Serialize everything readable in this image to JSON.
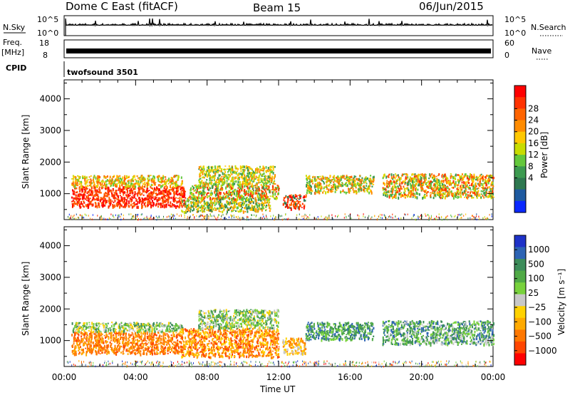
{
  "header": {
    "title": "Dome C East (fitACF)",
    "beam": "Beam 15",
    "date": "06/Jun/2015"
  },
  "top_panels": {
    "nsky_label": "N.Sky",
    "nsky_ticks": [
      "10^5",
      "10^0"
    ],
    "nsearch_label": "N.Search",
    "nsearch_ticks": [
      "10^5",
      "10^0"
    ],
    "freq_label": "Freq.",
    "freq_unit": "[MHz]",
    "freq_ticks": [
      "18",
      "8"
    ],
    "nave_label": "Nave",
    "nave_ticks": [
      "60",
      "0"
    ],
    "cpid_label": "CPID",
    "cpid_value": "twofsound 3501"
  },
  "chart_data": [
    {
      "type": "heatmap",
      "name": "power",
      "ylabel": "Slant Range [km]",
      "yticks": [
        "1000",
        "2000",
        "3000",
        "4000"
      ],
      "ylim": [
        180,
        4600
      ],
      "xlim_hours": [
        0,
        24
      ],
      "xtick_labels": [
        "00:00",
        "04:00",
        "08:00",
        "12:00",
        "16:00",
        "20:00",
        "00:00"
      ],
      "colorbar_label": "Power [dB]",
      "colorbar_ticks": [
        "28",
        "24",
        "20",
        "16",
        "12",
        "8",
        "4"
      ],
      "colorbar_colors": [
        "#ff0000",
        "#ff3200",
        "#ff6400",
        "#ff8c00",
        "#ffc800",
        "#c8dc00",
        "#64c83c",
        "#3c9a50",
        "#2e7850",
        "#1e5aa0",
        "#0a28ff"
      ],
      "scatter_regions": [
        {
          "t0": 0.4,
          "t1": 6.8,
          "r0": 600,
          "r1": 1250,
          "c": [
            0,
            1,
            2
          ]
        },
        {
          "t0": 0.4,
          "t1": 6.6,
          "r0": 1250,
          "r1": 1600,
          "c": [
            2,
            3,
            4,
            5,
            6
          ]
        },
        {
          "t0": 6.5,
          "t1": 11.5,
          "r0": 450,
          "r1": 900,
          "c": [
            3,
            4,
            5,
            6,
            7,
            8
          ]
        },
        {
          "t0": 7.0,
          "t1": 12.0,
          "r0": 850,
          "r1": 1300,
          "c": [
            1,
            2,
            5,
            6,
            7
          ]
        },
        {
          "t0": 7.5,
          "t1": 11.8,
          "r0": 1300,
          "r1": 1900,
          "c": [
            3,
            4,
            5,
            6,
            7
          ]
        },
        {
          "t0": 12.2,
          "t1": 13.5,
          "r0": 550,
          "r1": 1000,
          "c": [
            0,
            1,
            2,
            3,
            8
          ]
        },
        {
          "t0": 13.5,
          "t1": 17.3,
          "r0": 1050,
          "r1": 1600,
          "c": [
            2,
            3,
            4,
            5,
            6,
            7
          ]
        },
        {
          "t0": 17.8,
          "t1": 24.0,
          "r0": 900,
          "r1": 1650,
          "c": [
            1,
            2,
            3,
            4,
            5,
            6,
            7
          ]
        }
      ]
    },
    {
      "type": "heatmap",
      "name": "velocity",
      "ylabel": "Slant Range [km]",
      "yticks": [
        "1000",
        "2000",
        "3000",
        "4000"
      ],
      "ylim": [
        180,
        4600
      ],
      "xlim_hours": [
        0,
        24
      ],
      "xtick_labels": [
        "00:00",
        "04:00",
        "08:00",
        "12:00",
        "16:00",
        "20:00",
        "00:00"
      ],
      "xlabel": "Time UT",
      "colorbar_label": "Velocity [m s⁻¹]",
      "colorbar_ticks": [
        "1000",
        "500",
        "100",
        "25",
        "−25",
        "−100",
        "−500",
        "−1000"
      ],
      "colorbar_colors": [
        "#1e32c8",
        "#2d64b4",
        "#3c8c5a",
        "#50aa46",
        "#78d23c",
        "#c8c8c8",
        "#ffd200",
        "#ffaa00",
        "#ff7800",
        "#ff4600",
        "#ff0000"
      ],
      "scatter_regions": [
        {
          "t0": 0.4,
          "t1": 6.6,
          "r0": 600,
          "r1": 1300,
          "c": [
            7,
            8,
            9,
            8
          ]
        },
        {
          "t0": 0.4,
          "t1": 6.6,
          "r0": 1300,
          "r1": 1600,
          "c": [
            2,
            3,
            4,
            5,
            6
          ]
        },
        {
          "t0": 6.5,
          "t1": 12.0,
          "r0": 500,
          "r1": 1400,
          "c": [
            7,
            8,
            9,
            6
          ]
        },
        {
          "t0": 7.5,
          "t1": 12.0,
          "r0": 1400,
          "r1": 2000,
          "c": [
            2,
            3,
            4,
            5,
            6
          ]
        },
        {
          "t0": 12.2,
          "t1": 13.5,
          "r0": 600,
          "r1": 1100,
          "c": [
            5,
            6,
            7,
            8
          ]
        },
        {
          "t0": 13.5,
          "t1": 17.3,
          "r0": 1050,
          "r1": 1600,
          "c": [
            1,
            2,
            3,
            4
          ]
        },
        {
          "t0": 17.8,
          "t1": 24.0,
          "r0": 900,
          "r1": 1650,
          "c": [
            1,
            2,
            3,
            4,
            5
          ]
        }
      ]
    }
  ]
}
